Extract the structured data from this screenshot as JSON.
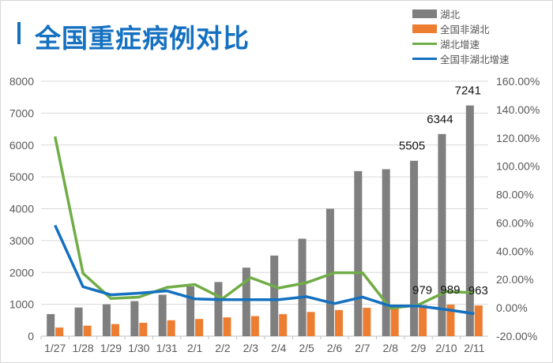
{
  "title": "全国重症病例对比",
  "colors": {
    "title": "#1470c0",
    "hubei": "#7f7f7f",
    "non_hubei": "#ed7d31",
    "hubei_speed": "#70ad47",
    "non_hubei_speed": "#1470c0",
    "grid": "#d9d9d9"
  },
  "chart_data": {
    "type": "bar",
    "title": "全国重症病例对比",
    "categories": [
      "1/27",
      "1/28",
      "1/29",
      "1/30",
      "1/31",
      "2/1",
      "2/2",
      "2/3",
      "2/4",
      "2/5",
      "2/6",
      "2/7",
      "2/8",
      "2/9",
      "2/10",
      "2/11"
    ],
    "series": [
      {
        "name": "湖北",
        "type": "bar",
        "axis": "left",
        "values": [
          693,
          900,
          1000,
          1100,
          1300,
          1560,
          1700,
          2150,
          2530,
          3060,
          4000,
          5180,
          5240,
          5505,
          6344,
          7241
        ]
      },
      {
        "name": "全国非湖北",
        "type": "bar",
        "axis": "left",
        "values": [
          270,
          330,
          380,
          420,
          500,
          540,
          590,
          630,
          690,
          760,
          820,
          890,
          950,
          979,
          989,
          963
        ]
      },
      {
        "name": "湖北增速",
        "type": "line",
        "axis": "right",
        "values": [
          121.0,
          24.4,
          6.6,
          7.6,
          14.4,
          16.5,
          6.6,
          21.3,
          14.0,
          17.8,
          24.8,
          24.8,
          -0.3,
          2.1,
          11.5,
          10.7
        ]
      },
      {
        "name": "全国非湖北增速",
        "type": "line",
        "axis": "right",
        "values": [
          58.3,
          14.9,
          9.2,
          10.4,
          12.0,
          6.3,
          5.8,
          5.8,
          5.8,
          7.9,
          3.0,
          7.6,
          1.3,
          1.3,
          -1.2,
          -4.1
        ]
      }
    ],
    "data_labels": [
      {
        "series": 0,
        "index": 13,
        "text": "5505"
      },
      {
        "series": 0,
        "index": 14,
        "text": "6344"
      },
      {
        "series": 0,
        "index": 15,
        "text": "7241"
      },
      {
        "series": 1,
        "index": 13,
        "text": "979"
      },
      {
        "series": 1,
        "index": 14,
        "text": "989"
      },
      {
        "series": 1,
        "index": 15,
        "text": "963"
      }
    ],
    "y_left": {
      "min": 0,
      "max": 8000,
      "step": 1000,
      "ticks": [
        "0",
        "1000",
        "2000",
        "3000",
        "4000",
        "5000",
        "6000",
        "7000",
        "8000"
      ]
    },
    "y_right": {
      "min": -20,
      "max": 160,
      "step": 20,
      "ticks": [
        "-20.00%",
        "0.00%",
        "20.00%",
        "40.00%",
        "60.00%",
        "80.00%",
        "100.00%",
        "120.00%",
        "140.00%",
        "160.00%"
      ]
    },
    "xlabel": "",
    "ylabel": "",
    "grid": true,
    "legend_position": "top-right"
  }
}
